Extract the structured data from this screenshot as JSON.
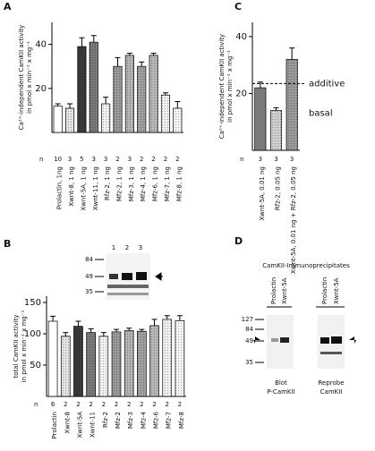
{
  "chart_data": [
    {
      "type": "bar",
      "panel": "A",
      "ylabel": [
        "Ca²⁺-independent CamKII activity",
        "in pmol x min⁻¹ x mg⁻¹"
      ],
      "categories": [
        "Prolactin, 1ng",
        "Xwnt-8, 1 ng",
        "Xwnt-5A, 1 ng",
        "Xwnt-11, 1 ng",
        "Rfz-2, 1 ng",
        "Mfz-2, 1 ng",
        "Mfz-3, 1 ng",
        "Mfz-4, 1 ng",
        "Mfz-6, 1 ng",
        "Mfz-7, 1 ng",
        "Mfz-8, 1 ng"
      ],
      "values": [
        12,
        11,
        39,
        41,
        13,
        30,
        35,
        30,
        35,
        17,
        11
      ],
      "errors": [
        1,
        2,
        4,
        3,
        3,
        4,
        1,
        2,
        1,
        1,
        3
      ],
      "colors": [
        "#ffffff",
        "#e4e4e4",
        "#3a3a3a",
        "#7a7a7a",
        "#f2f2f2",
        "#9a9a9a",
        "#b4b4b4",
        "#a0a0a0",
        "#b8b8b8",
        "#f0f0f0",
        "#f6f6f6"
      ],
      "n_label": "n",
      "n": [
        10,
        3,
        5,
        3,
        3,
        2,
        3,
        2,
        2,
        2,
        2
      ],
      "ylim": [
        0,
        50
      ],
      "yticks": [
        20,
        40
      ]
    },
    {
      "type": "bar",
      "panel": "B",
      "ylabel": [
        "total CamKII activity",
        "in pmol x min⁻¹ x mg⁻¹"
      ],
      "categories": [
        "Prolactin",
        "Xwnt-8",
        "Xwnt-5A",
        "Xwnt-11",
        "Rfz-2",
        "Mfz-2",
        "Mfz-3",
        "Mfz-4",
        "Mfz-6",
        "Mfz-7",
        "Mfz-8"
      ],
      "values": [
        120,
        96,
        112,
        102,
        96,
        103,
        105,
        104,
        113,
        123,
        121
      ],
      "errors": [
        8,
        6,
        8,
        6,
        6,
        4,
        4,
        3,
        10,
        6,
        8
      ],
      "colors": [
        "#ffffff",
        "#e4e4e4",
        "#3a3a3a",
        "#7a7a7a",
        "#f2f2f2",
        "#9a9a9a",
        "#b4b4b4",
        "#a0a0a0",
        "#b8b8b8",
        "#f0f0f0",
        "#f6f6f6"
      ],
      "n_label": "n",
      "n": [
        6,
        2,
        2,
        2,
        2,
        2,
        2,
        2,
        2,
        2,
        2
      ],
      "ylim": [
        0,
        160
      ],
      "yticks": [
        50,
        100,
        150
      ],
      "inset": {
        "lanes": [
          "1",
          "2",
          "3"
        ],
        "mw": [
          "84",
          "49",
          "35"
        ]
      }
    },
    {
      "type": "bar",
      "panel": "C",
      "ylabel": [
        "Ca²⁺-independent CamKII activity",
        "in pmol x min⁻¹ x mg⁻¹"
      ],
      "categories": [
        "Xwnt-5A, 0.01 ng",
        "Rfz-2, 0.05 ng",
        "Xwnt-5A, 0.01 ng + Rfz-2, 0.05 ng"
      ],
      "values": [
        22,
        14,
        32
      ],
      "errors": [
        2,
        1,
        4
      ],
      "colors": [
        "#7a7a7a",
        "#d0d0d0",
        "#9a9a9a"
      ],
      "n_label": "n",
      "n": [
        3,
        3,
        3
      ],
      "ylim": [
        0,
        45
      ],
      "yticks": [
        20,
        40
      ],
      "annotations": [
        {
          "text": "additive",
          "value": 23.5,
          "line": true
        },
        {
          "text": "basal",
          "value": 13,
          "line": false
        }
      ]
    }
  ],
  "panel_d": {
    "panel": "D",
    "title": "CamKII-Immunoprecipitates",
    "lanes": [
      "Prolactin",
      "Xwnt-5A",
      "Prolactin",
      "Xwnt-5A"
    ],
    "mw": [
      "127",
      "84",
      "49",
      "35"
    ],
    "captions": [
      [
        "Blot",
        "P-CamKII"
      ],
      [
        "Reprobe",
        "CamKII"
      ]
    ]
  }
}
